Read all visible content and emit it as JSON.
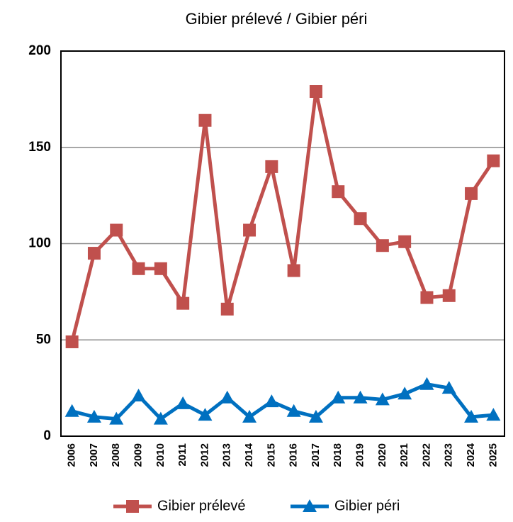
{
  "chart_data": {
    "type": "line",
    "title": "Gibier prélevé / Gibier péri",
    "categories": [
      "2006",
      "2007",
      "2008",
      "2009",
      "2010",
      "2011",
      "2012",
      "2013",
      "2014",
      "2015",
      "2016",
      "2017",
      "2018",
      "2019",
      "2020",
      "2021",
      "2022",
      "2023",
      "2024",
      "2025"
    ],
    "series": [
      {
        "name": "Gibier prélevé",
        "color": "#c0504d",
        "marker": "square",
        "values": [
          49,
          95,
          107,
          87,
          87,
          69,
          164,
          66,
          107,
          140,
          86,
          179,
          127,
          113,
          99,
          101,
          72,
          73,
          126,
          143
        ]
      },
      {
        "name": "Gibier péri",
        "color": "#0070c0",
        "marker": "triangle",
        "values": [
          13,
          10,
          9,
          21,
          9,
          17,
          11,
          20,
          10,
          18,
          13,
          10,
          20,
          20,
          19,
          22,
          27,
          25,
          10,
          11
        ]
      }
    ],
    "ylim": [
      0,
      200
    ],
    "yticks": [
      0,
      50,
      100,
      150,
      200
    ],
    "grid": true,
    "legend": "bottom"
  }
}
